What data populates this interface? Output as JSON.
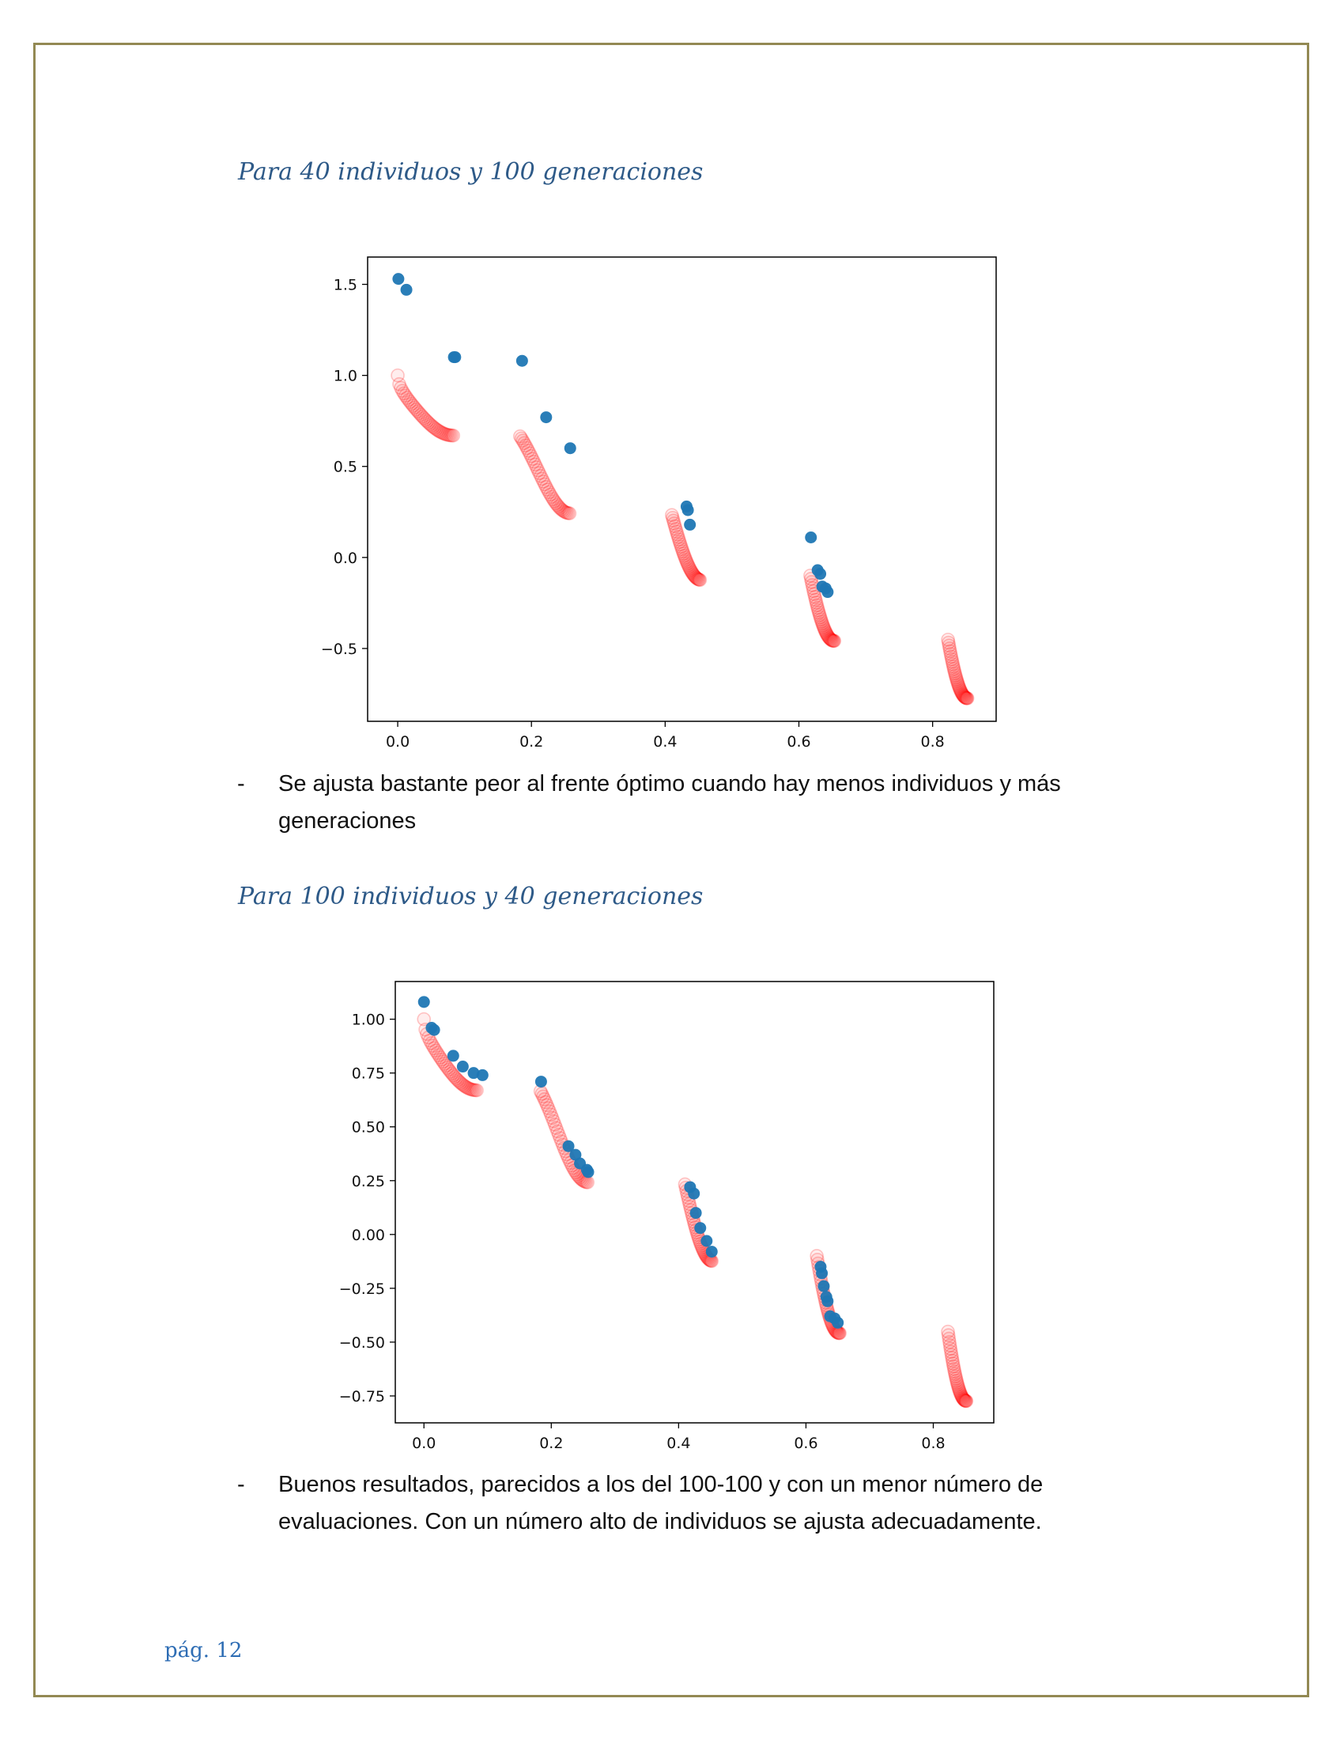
{
  "page": {
    "footer": "pág. 12",
    "border_color": "#938953"
  },
  "sections": [
    {
      "heading": "Para 40 individuos y 100 generaciones",
      "bullet": "Se ajusta bastante peor al frente óptimo cuando hay menos individuos y más generaciones"
    },
    {
      "heading": "Para 100 individuos y 40 generaciones",
      "bullet": "Buenos resultados, parecidos a los del 100-100 y con un menor número de evaluaciones. Con un número alto de individuos se ajusta adecuadamente."
    }
  ],
  "bullet_marker": "-",
  "chart_data": [
    {
      "type": "scatter",
      "title": "",
      "xlabel": "",
      "ylabel": "",
      "xlim": [
        -0.045,
        0.895
      ],
      "ylim": [
        -0.9,
        1.65
      ],
      "xticks": [
        0.0,
        0.2,
        0.4,
        0.6,
        0.8
      ],
      "xtick_labels": [
        "0.0",
        "0.2",
        "0.4",
        "0.6",
        "0.8"
      ],
      "yticks": [
        -0.5,
        0.0,
        0.5,
        1.0,
        1.5
      ],
      "ytick_labels": [
        "−0.5",
        "0.0",
        "0.5",
        "1.0",
        "1.5"
      ],
      "grid": false,
      "legend": "none",
      "front_color": "#ff0000",
      "solution_color": "#1f77b4",
      "front_segments": [
        [
          0.0,
          0.083
        ],
        [
          0.183,
          0.257
        ],
        [
          0.41,
          0.452
        ],
        [
          0.617,
          0.653
        ],
        [
          0.823,
          0.852
        ]
      ],
      "series": [
        {
          "values": [
            [
              0.001,
              1.53
            ],
            [
              0.013,
              1.47
            ],
            [
              0.084,
              1.1
            ],
            [
              0.086,
              1.1
            ],
            [
              0.186,
              1.08
            ],
            [
              0.222,
              0.77
            ],
            [
              0.258,
              0.6
            ],
            [
              0.432,
              0.28
            ],
            [
              0.434,
              0.26
            ],
            [
              0.437,
              0.18
            ],
            [
              0.618,
              0.11
            ],
            [
              0.628,
              -0.07
            ],
            [
              0.632,
              -0.09
            ],
            [
              0.635,
              -0.16
            ],
            [
              0.64,
              -0.17
            ],
            [
              0.643,
              -0.19
            ]
          ]
        }
      ]
    },
    {
      "type": "scatter",
      "title": "",
      "xlabel": "",
      "ylabel": "",
      "xlim": [
        -0.045,
        0.895
      ],
      "ylim": [
        -0.875,
        1.175
      ],
      "xticks": [
        0.0,
        0.2,
        0.4,
        0.6,
        0.8
      ],
      "xtick_labels": [
        "0.0",
        "0.2",
        "0.4",
        "0.6",
        "0.8"
      ],
      "yticks": [
        -0.75,
        -0.5,
        -0.25,
        0.0,
        0.25,
        0.5,
        0.75,
        1.0
      ],
      "ytick_labels": [
        "−0.75",
        "−0.50",
        "−0.25",
        "0.00",
        "0.25",
        "0.50",
        "0.75",
        "1.00"
      ],
      "grid": false,
      "legend": "none",
      "front_color": "#ff0000",
      "solution_color": "#1f77b4",
      "front_segments": [
        [
          0.0,
          0.083
        ],
        [
          0.183,
          0.257
        ],
        [
          0.41,
          0.452
        ],
        [
          0.617,
          0.653
        ],
        [
          0.823,
          0.852
        ]
      ],
      "series": [
        {
          "values": [
            [
              0.0,
              1.08
            ],
            [
              0.012,
              0.96
            ],
            [
              0.016,
              0.95
            ],
            [
              0.046,
              0.83
            ],
            [
              0.061,
              0.78
            ],
            [
              0.078,
              0.75
            ],
            [
              0.092,
              0.74
            ],
            [
              0.184,
              0.71
            ],
            [
              0.227,
              0.41
            ],
            [
              0.238,
              0.37
            ],
            [
              0.245,
              0.33
            ],
            [
              0.256,
              0.3
            ],
            [
              0.258,
              0.29
            ],
            [
              0.418,
              0.22
            ],
            [
              0.424,
              0.19
            ],
            [
              0.427,
              0.1
            ],
            [
              0.434,
              0.03
            ],
            [
              0.444,
              -0.03
            ],
            [
              0.452,
              -0.08
            ],
            [
              0.623,
              -0.15
            ],
            [
              0.625,
              -0.18
            ],
            [
              0.628,
              -0.24
            ],
            [
              0.632,
              -0.29
            ],
            [
              0.634,
              -0.31
            ],
            [
              0.638,
              -0.38
            ],
            [
              0.645,
              -0.39
            ],
            [
              0.65,
              -0.41
            ]
          ]
        }
      ]
    }
  ]
}
